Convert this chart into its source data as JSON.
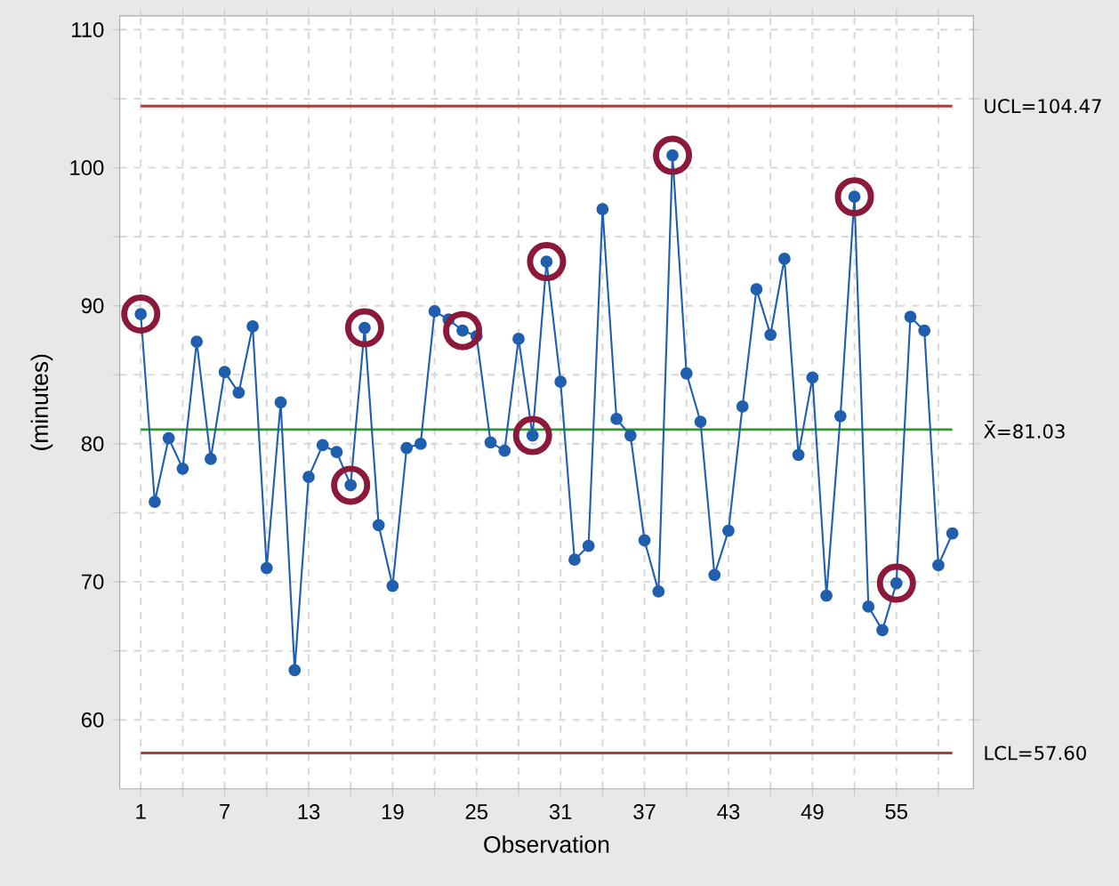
{
  "chart_data": {
    "type": "line",
    "xlabel": "Observation",
    "ylabel": "(minutes)",
    "x": [
      1,
      2,
      3,
      4,
      5,
      6,
      7,
      8,
      9,
      10,
      11,
      12,
      13,
      14,
      15,
      16,
      17,
      18,
      19,
      20,
      21,
      22,
      23,
      24,
      25,
      26,
      27,
      28,
      29,
      30,
      31,
      32,
      33,
      34,
      35,
      36,
      37,
      38,
      39,
      40,
      41,
      42,
      43,
      44,
      45,
      46,
      47,
      48,
      49,
      50,
      51,
      52,
      53,
      54,
      55,
      56,
      57,
      58,
      59
    ],
    "series": [
      {
        "color": "#1f5fad",
        "marker": "circle",
        "values": [
          89.4,
          75.8,
          80.4,
          78.2,
          87.4,
          78.9,
          85.2,
          83.7,
          88.5,
          71.0,
          83.0,
          63.6,
          77.6,
          79.9,
          79.4,
          77.0,
          88.4,
          74.1,
          69.7,
          79.7,
          80.0,
          89.6,
          89.0,
          88.2,
          87.8,
          80.1,
          79.5,
          87.6,
          80.6,
          93.2,
          84.5,
          71.6,
          72.6,
          97.0,
          81.8,
          80.6,
          73.0,
          69.3,
          100.9,
          85.1,
          81.6,
          70.5,
          73.7,
          82.7,
          91.2,
          87.9,
          93.4,
          79.2,
          84.8,
          69.0,
          82.0,
          97.9,
          68.2,
          66.5,
          69.9,
          89.2,
          88.2,
          71.2,
          73.5
        ]
      },
      {
        "type": "scatter",
        "color": "#8b1a3a",
        "marker": "circle",
        "values": [
          89.4,
          null,
          null,
          null,
          null,
          null,
          null,
          null,
          null,
          null,
          null,
          null,
          null,
          null,
          null,
          77.0,
          88.4,
          null,
          null,
          null,
          null,
          null,
          null,
          88.2,
          null,
          null,
          null,
          null,
          80.6,
          93.2,
          null,
          null,
          null,
          null,
          null,
          null,
          null,
          null,
          100.9,
          null,
          null,
          null,
          null,
          null,
          null,
          null,
          null,
          null,
          null,
          null,
          null,
          97.9,
          null,
          null,
          69.9,
          null,
          null,
          null,
          null
        ]
      }
    ],
    "xlim": [
      -0.5,
      60.5
    ],
    "ylim": [
      55,
      111
    ],
    "xticks": [
      1,
      {
        "value": 4,
        "label": null
      },
      7,
      {
        "value": 10,
        "label": null
      },
      13,
      {
        "value": 16,
        "label": null
      },
      19,
      {
        "value": 22,
        "label": null
      },
      25,
      {
        "value": 28,
        "label": null
      },
      31,
      {
        "value": 34,
        "label": null
      },
      37,
      {
        "value": 40,
        "label": null
      },
      43,
      {
        "value": 46,
        "label": null
      },
      49,
      {
        "value": 52,
        "label": null
      },
      55,
      {
        "value": 58,
        "label": null
      }
    ],
    "yticks": [
      60,
      {
        "value": 65,
        "label": null
      },
      70,
      {
        "value": 75,
        "label": null
      },
      80,
      {
        "value": 85,
        "label": null
      },
      90,
      {
        "value": 95,
        "label": null
      },
      100,
      {
        "value": 105,
        "label": null
      },
      110
    ],
    "grid": true,
    "line_style": "solid",
    "ref_lines": [
      {
        "axis": "y",
        "value": 104.47,
        "label": "UCL=104.47",
        "color": "#b03a3a"
      },
      {
        "axis": "y",
        "value": 81.03,
        "label": "X̄=81.03",
        "color": "#2e9a2e"
      },
      {
        "axis": "y",
        "value": 57.6,
        "label": "LCL=57.60",
        "color": "#b03a3a"
      }
    ]
  }
}
